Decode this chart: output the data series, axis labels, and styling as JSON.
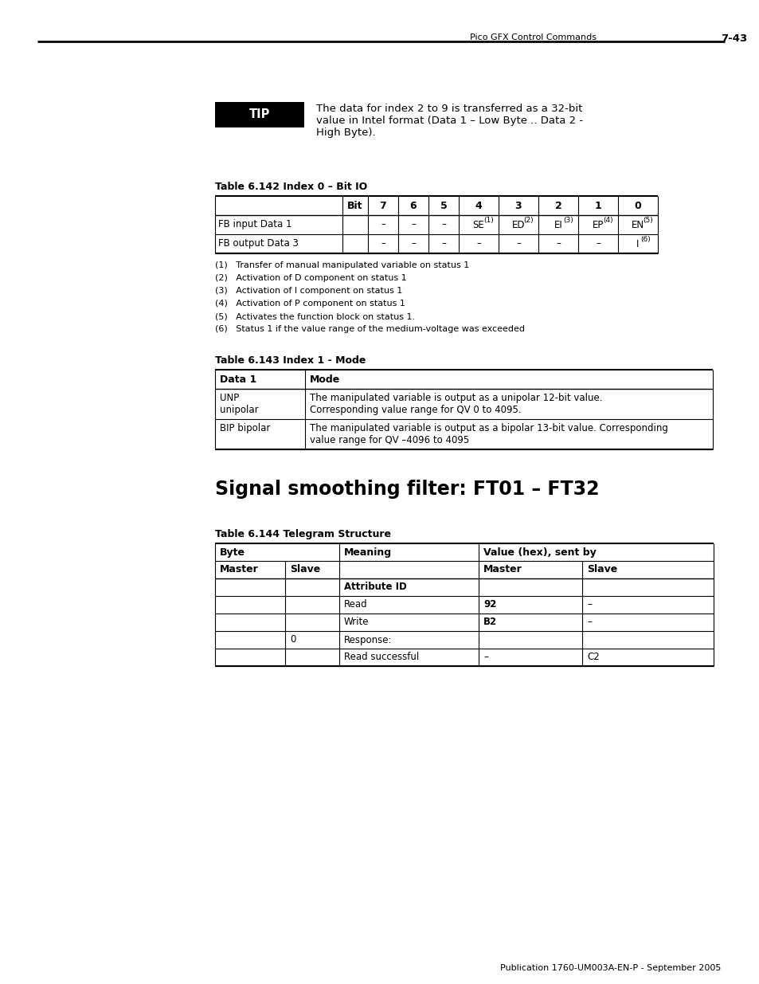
{
  "page_header_left": "Pico GFX Control Commands",
  "page_header_right": "7-43",
  "tip_text_line1": "The data for index 2 to 9 is transferred as a 32-bit",
  "tip_text_line2": "value in Intel format (Data 1 – Low Byte .. Data 2 -",
  "tip_text_line3": "High Byte).",
  "table1_title": "Table 6.142 Index 0 – Bit IO",
  "table1_col_headers": [
    "",
    "Bit",
    "7",
    "6",
    "5",
    "4",
    "3",
    "2",
    "1",
    "0"
  ],
  "table1_rows": [
    [
      "FB input Data 1",
      "",
      "–",
      "–",
      "–",
      "SE",
      "ED",
      "EI",
      "EP",
      "EN"
    ],
    [
      "FB output Data 3",
      "",
      "–",
      "–",
      "–",
      "–",
      "–",
      "–",
      "–",
      "I"
    ]
  ],
  "table1_row_superscripts": [
    [
      "",
      "",
      "",
      "",
      "",
      "(1)",
      "(2)",
      "(3)",
      "(4)",
      "(5)"
    ],
    [
      "",
      "",
      "",
      "",
      "",
      "",
      "",
      "",
      "",
      "(6)"
    ]
  ],
  "table1_footnotes": [
    "(1)   Transfer of manual manipulated variable on status 1",
    "(2)   Activation of D component on status 1",
    "(3)   Activation of I component on status 1",
    "(4)   Activation of P component on status 1",
    "(5)   Activates the function block on status 1.",
    "(6)   Status 1 if the value range of the medium-voltage was exceeded"
  ],
  "table2_title": "Table 6.143 Index 1 - Mode",
  "table2_col_headers": [
    "Data 1",
    "Mode"
  ],
  "table2_rows": [
    [
      "UNP\nunipolar",
      "The manipulated variable is output as a unipolar 12-bit value.\nCorresponding value range for QV 0 to 4095."
    ],
    [
      "BIP bipolar",
      "The manipulated variable is output as a bipolar 13-bit value. Corresponding\nvalue range for QV –4096 to 4095"
    ]
  ],
  "section_title": "Signal smoothing filter: FT01 – FT32",
  "table3_title": "Table 6.144 Telegram Structure",
  "table3_col_headers_row2": [
    "Master",
    "Slave",
    "",
    "Master",
    "Slave"
  ],
  "table3_rows": [
    [
      "",
      "",
      "Attribute ID",
      "",
      ""
    ],
    [
      "",
      "",
      "Read",
      "92",
      "–"
    ],
    [
      "",
      "",
      "Write",
      "B2",
      "–"
    ],
    [
      "",
      "0",
      "Response:",
      "",
      ""
    ],
    [
      "",
      "",
      "Read successful",
      "–",
      "C2"
    ]
  ],
  "footer": "Publication 1760-UM003A-EN-P - September 2005",
  "bg_color": "#ffffff"
}
